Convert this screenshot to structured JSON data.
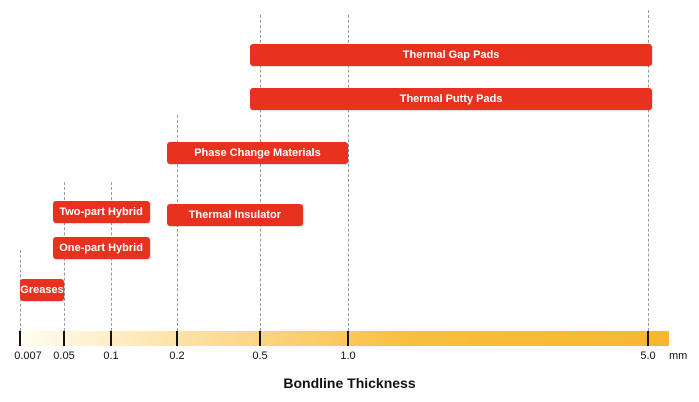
{
  "chart_data": {
    "type": "bar",
    "orientation": "horizontal-range",
    "xlabel": "Bondline Thickness",
    "x_unit": "mm",
    "x_ticks": [
      "0.007",
      "0.05",
      "0.1",
      "0.2",
      "0.5",
      "1.0",
      "5.0"
    ],
    "x_tick_values": [
      0.007,
      0.05,
      0.1,
      0.2,
      0.5,
      1.0,
      5.0
    ],
    "grid": "dashed vertical guides",
    "colors": {
      "bar": "#e8321f",
      "bar_text": "#ffffff",
      "axis_start": "#fffdf3",
      "axis_end": "#f7b82f"
    },
    "categories": [
      "Thermal Gap Pads",
      "Thermal Putty Pads",
      "Phase Change Materials",
      "Two-part Hybrid",
      "Thermal Insulator",
      "One-part Hybrid",
      "Greases"
    ],
    "ranges": [
      {
        "name": "Thermal Gap Pads",
        "start": 0.45,
        "end": 5.1
      },
      {
        "name": "Thermal Putty Pads",
        "start": 0.45,
        "end": 5.1
      },
      {
        "name": "Phase Change Materials",
        "start": 0.18,
        "end": 1.0
      },
      {
        "name": "Two-part Hybrid",
        "start": 0.03,
        "end": 0.15
      },
      {
        "name": "Thermal Insulator",
        "start": 0.18,
        "end": 0.7
      },
      {
        "name": "One-part Hybrid",
        "start": 0.03,
        "end": 0.15
      },
      {
        "name": "Greases",
        "start": 0.007,
        "end": 0.05
      }
    ]
  }
}
